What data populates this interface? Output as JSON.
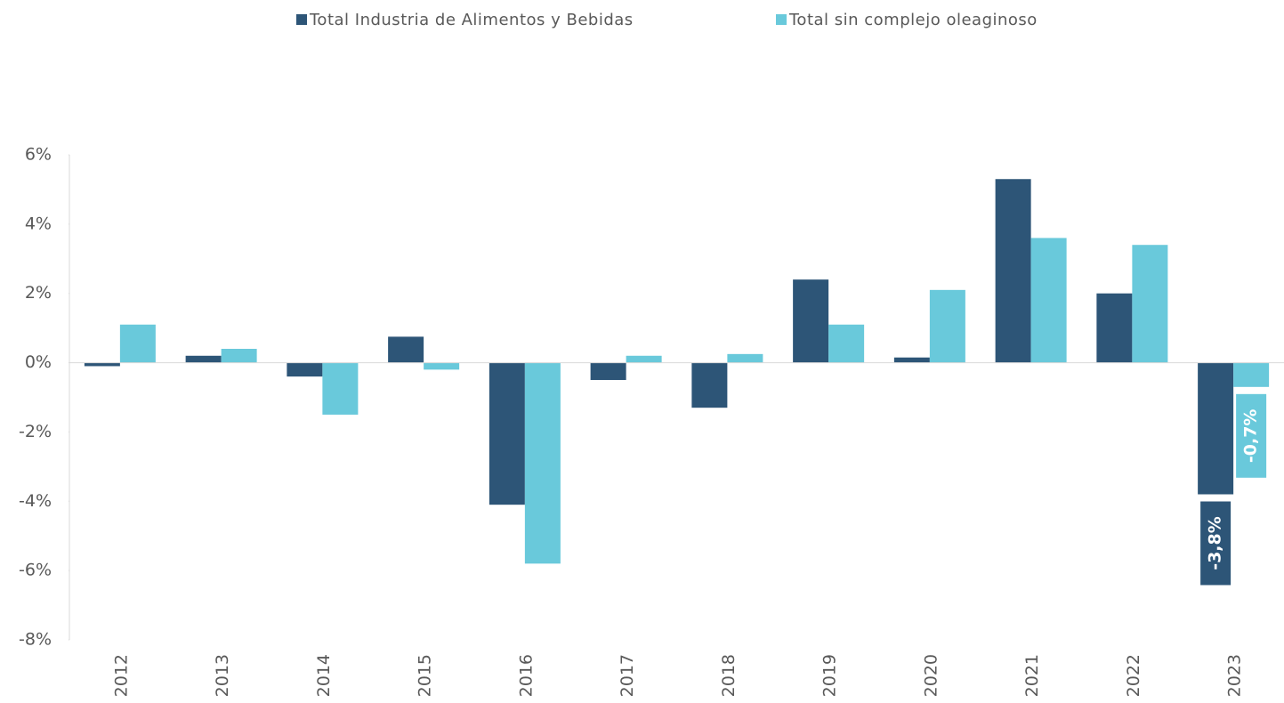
{
  "chart_data": {
    "type": "bar",
    "categories": [
      "2012",
      "2013",
      "2014",
      "2015",
      "2016",
      "2017",
      "2018",
      "2019",
      "2020",
      "2021",
      "2022",
      "2023"
    ],
    "series": [
      {
        "name": "Total Industria de Alimentos y Bebidas",
        "color": "#2d5577",
        "values": [
          -0.1,
          0.2,
          -0.4,
          0.75,
          -4.1,
          -0.5,
          -1.3,
          2.4,
          0.15,
          5.3,
          2.0,
          -3.8
        ],
        "value_labels": [
          null,
          null,
          null,
          null,
          null,
          null,
          null,
          null,
          null,
          null,
          null,
          "-3,8%"
        ]
      },
      {
        "name": "Total sin complejo oleaginoso",
        "color": "#69c9db",
        "values": [
          1.1,
          0.4,
          -1.5,
          -0.2,
          -5.8,
          0.2,
          0.25,
          1.1,
          2.1,
          3.6,
          3.4,
          -0.7
        ],
        "value_labels": [
          null,
          null,
          null,
          null,
          null,
          null,
          null,
          null,
          null,
          null,
          null,
          "-0,7%"
        ]
      }
    ],
    "ylim": [
      -8,
      6
    ],
    "yticks": [
      {
        "value": -8,
        "label": "-8%"
      },
      {
        "value": -6,
        "label": "-6%"
      },
      {
        "value": -4,
        "label": "-4%"
      },
      {
        "value": -2,
        "label": "-2%"
      },
      {
        "value": 0,
        "label": "0%"
      },
      {
        "value": 2,
        "label": "2%"
      },
      {
        "value": 4,
        "label": "4%"
      },
      {
        "value": 6,
        "label": "6%"
      }
    ],
    "legend": "top"
  }
}
